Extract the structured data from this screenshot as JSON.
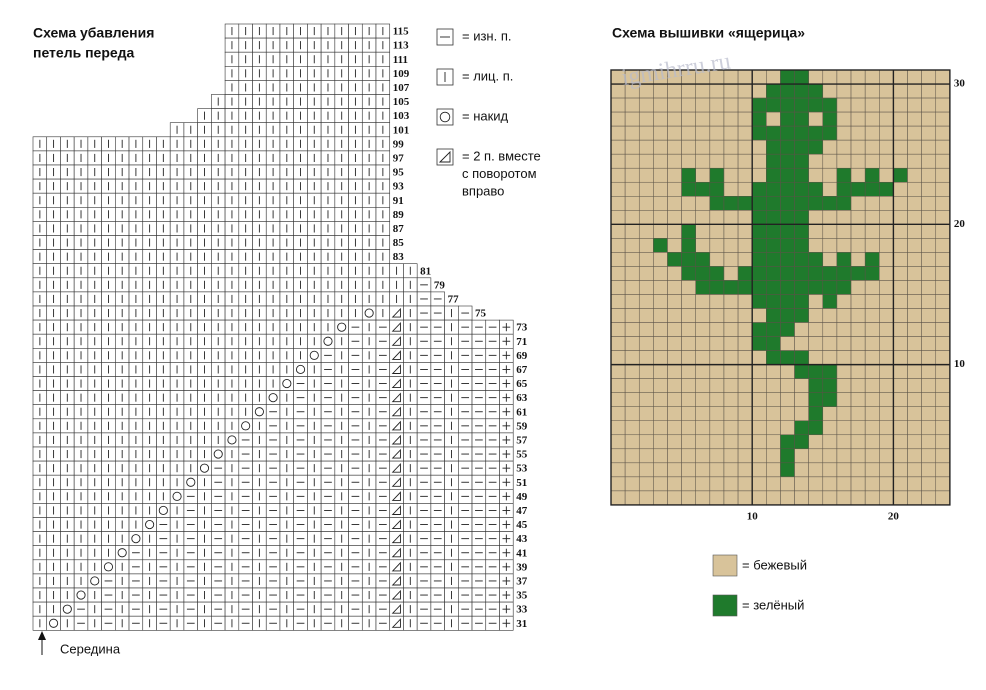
{
  "left": {
    "title_lines": [
      "Схема убавления",
      "петель переда"
    ],
    "middle_label": "Середина",
    "legend": [
      {
        "symbol": "p",
        "lines": [
          "= изн. п."
        ]
      },
      {
        "symbol": "k",
        "lines": [
          "= лиц. п."
        ]
      },
      {
        "symbol": "o",
        "lines": [
          "= накид"
        ]
      },
      {
        "symbol": "d",
        "lines": [
          "= 2 п. вместе",
          "с поворотом",
          "вправо"
        ]
      }
    ],
    "rows": [
      {
        "label": "115",
        "cells": "..............kkkkkkkkkkkk"
      },
      {
        "label": "113",
        "cells": "..............kkkkkkkkkkkk"
      },
      {
        "label": "111",
        "cells": "..............kkkkkkkkkkkk"
      },
      {
        "label": "109",
        "cells": "..............kkkkkkkkkkkk"
      },
      {
        "label": "107",
        "cells": "..............kkkkkkkkkkkk"
      },
      {
        "label": "105",
        "cells": ".............kkkkkkkkkkkkk"
      },
      {
        "label": "103",
        "cells": "............kkkkkkkkkkkkkk"
      },
      {
        "label": "101",
        "cells": "..........kkkkkkkkkkkkkkkk"
      },
      {
        "label": "99",
        "cells": "kkkkkkkkkkkkkkkkkkkkkkkkkk"
      },
      {
        "label": "97",
        "cells": "kkkkkkkkkkkkkkkkkkkkkkkkkk"
      },
      {
        "label": "95",
        "cells": "kkkkkkkkkkkkkkkkkkkkkkkkkk"
      },
      {
        "label": "93",
        "cells": "kkkkkkkkkkkkkkkkkkkkkkkkkk"
      },
      {
        "label": "91",
        "cells": "kkkkkkkkkkkkkkkkkkkkkkkkkk"
      },
      {
        "label": "89",
        "cells": "kkkkkkkkkkkkkkkkkkkkkkkkkk"
      },
      {
        "label": "87",
        "cells": "kkkkkkkkkkkkkkkkkkkkkkkkkk"
      },
      {
        "label": "85",
        "cells": "kkkkkkkkkkkkkkkkkkkkkkkkkk"
      },
      {
        "label": "83",
        "cells": "kkkkkkkkkkkkkkkkkkkkkkkkkk"
      },
      {
        "label": "81",
        "cells": "kkkkkkkkkkkkkkkkkkkkkkkkkkkk"
      },
      {
        "label": "79",
        "cells": "kkkkkkkkkkkkkkkkkkkkkkkkkkkkp"
      },
      {
        "label": "77",
        "cells": "kkkkkkkkkkkkkkkkkkkkkkkkkkkkpp"
      },
      {
        "label": "75",
        "cells": "kkkkkkkkkkkkkkkkkkkkkkkkokdkppkp"
      },
      {
        "label": "73",
        "cells": "kkkkkkkkkkkkkkkkkkkkkkopkpdkppkpppe"
      },
      {
        "label": "71",
        "cells": "kkkkkkkkkkkkkkkkkkkkkokpkpdkppkpppe"
      },
      {
        "label": "69",
        "cells": "kkkkkkkkkkkkkkkkkkkkopkpkpdkppkpppe"
      },
      {
        "label": "67",
        "cells": "kkkkkkkkkkkkkkkkkkkokpkpkpdkppkpppe"
      },
      {
        "label": "65",
        "cells": "kkkkkkkkkkkkkkkkkkopkpkpkpdkppkpppe"
      },
      {
        "label": "63",
        "cells": "kkkkkkkkkkkkkkkkkokpkpkpkpdkppkpppe"
      },
      {
        "label": "61",
        "cells": "kkkkkkkkkkkkkkkkopkpkpkpkpdkppkpppe"
      },
      {
        "label": "59",
        "cells": "kkkkkkkkkkkkkkkokpkpkpkpkpdkppkpppe"
      },
      {
        "label": "57",
        "cells": "kkkkkkkkkkkkkkopkpkpkpkpkpdkppkpppe"
      },
      {
        "label": "55",
        "cells": "kkkkkkkkkkkkkokpkpkpkpkpkpdkppkpppe"
      },
      {
        "label": "53",
        "cells": "kkkkkkkkkkkkopkpkpkpkpkpkpdkppkpppe"
      },
      {
        "label": "51",
        "cells": "kkkkkkkkkkkokpkpkpkpkpkpkpdkppkpppe"
      },
      {
        "label": "49",
        "cells": "kkkkkkkkkkopkpkpkpkpkpkpkpdkppkpppe"
      },
      {
        "label": "47",
        "cells": "kkkkkkkkkokpkpkpkpkpkpkpkpdkppkpppe"
      },
      {
        "label": "45",
        "cells": "kkkkkkkkopkpkpkpkpkpkpkpkpdkppkpppe"
      },
      {
        "label": "43",
        "cells": "kkkkkkkokpkpkpkpkpkpkpkpkpdkppkpppe"
      },
      {
        "label": "41",
        "cells": "kkkkkkopkpkpkpkpkpkpkpkpkpdkppkpppe"
      },
      {
        "label": "39",
        "cells": "kkkkkokpkpkpkpkpkpkpkpkpkpdkppkpppe"
      },
      {
        "label": "37",
        "cells": "kkkkopkpkpkpkpkpkpkpkpkpkpdkppkpppe"
      },
      {
        "label": "35",
        "cells": "kkkokpkpkpkpkpkpkpkpkpkpkpdkppkpppe"
      },
      {
        "label": "33",
        "cells": "kkopkpkpkpkpkpkpkpkpkpkpkpdkppkpppe"
      },
      {
        "label": "31",
        "cells": "kokpkpkpkpkpkpkpkpkpkpkpkpdkppkpppe"
      }
    ]
  },
  "right": {
    "title": "Схема вышивки «ящерица»",
    "watermark": "igmihrru.ru",
    "xticks": [
      10,
      20
    ],
    "yticks": [
      10,
      20,
      30
    ],
    "legend": [
      {
        "color": "#d8c39a",
        "label": "= бежевый"
      },
      {
        "color": "#1f7a2c",
        "label": "= зелёный"
      }
    ],
    "rows": [
      "............gg..........",
      "...........gggg.........",
      "..........gggggg........",
      "..........g.gg.g........",
      "..........gggggg........",
      "...........gggg.........",
      "...........ggg..........",
      ".....g.g...ggg..g.g.g...",
      ".....ggg..ggggg.gggg....",
      ".......gggggggggg.......",
      "..........gggg..........",
      ".....g....gggg..........",
      "...g.g....gggg..........",
      "....ggg...ggggg.g.g.....",
      ".....ggg.gggggggggg.....",
      "......ggggggggggg.......",
      "..........gggg.g........",
      "...........ggg..........",
      "..........ggg...........",
      "..........gg............",
      "...........ggg..........",
      ".............ggg........",
      "..............gg........",
      "..............gg........",
      "..............g.........",
      ".............gg.........",
      "............gg..........",
      "............g...........",
      "............g...........",
      "........................",
      "........................"
    ]
  }
}
